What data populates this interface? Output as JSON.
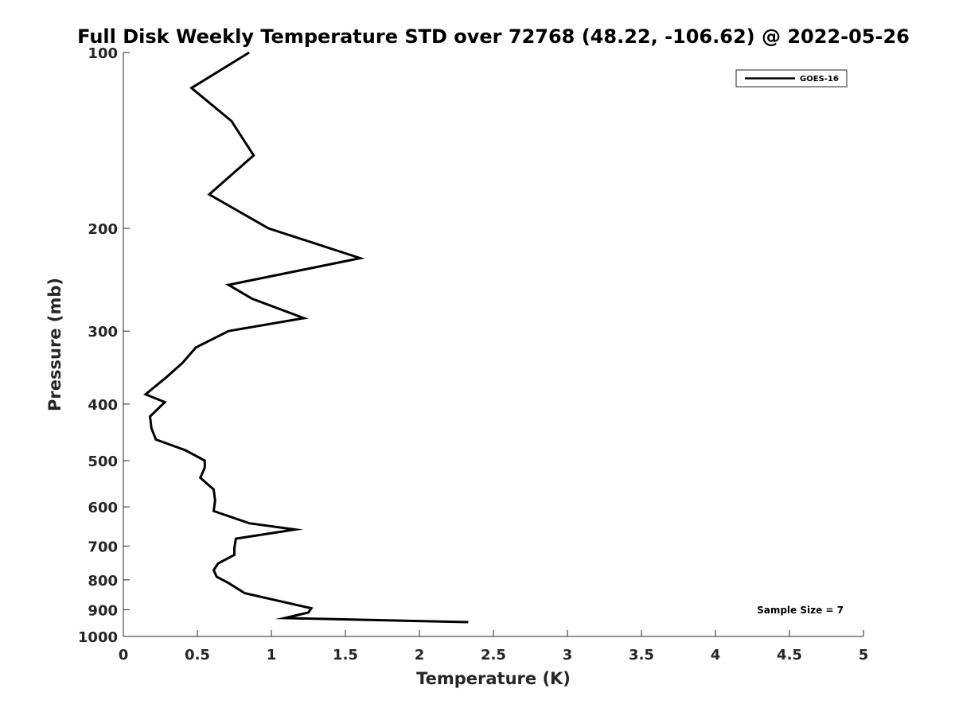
{
  "chart_data": {
    "type": "line",
    "title": "Full Disk Weekly Temperature STD over 72768 (48.22, -106.62) @ 2022-05-26",
    "xlabel": "Temperature (K)",
    "ylabel": "Pressure (mb)",
    "xlim": [
      0,
      5
    ],
    "ylim": [
      1000,
      100
    ],
    "y_scale": "log",
    "y_reversed": true,
    "grid": false,
    "legend_position": "top-right",
    "x_ticks": [
      "0",
      "0.5",
      "1",
      "1.5",
      "2",
      "2.5",
      "3",
      "3.5",
      "4",
      "4.5",
      "5"
    ],
    "y_ticks": [
      "100",
      "200",
      "300",
      "400",
      "500",
      "600",
      "700",
      "800",
      "900",
      "1000"
    ],
    "annotation": "Sample Size = 7",
    "series": [
      {
        "name": "GOES-16",
        "color": "#000000",
        "x": [
          0.85,
          0.46,
          0.73,
          0.88,
          0.58,
          0.98,
          1.6,
          0.71,
          0.87,
          1.22,
          0.71,
          0.49,
          0.4,
          0.29,
          0.15,
          0.28,
          0.18,
          0.19,
          0.22,
          0.42,
          0.55,
          0.55,
          0.52,
          0.61,
          0.62,
          0.61,
          0.85,
          1.16,
          0.76,
          0.75,
          0.75,
          0.64,
          0.61,
          0.63,
          0.71,
          0.82,
          1.27,
          1.25,
          1.09,
          2.33
        ],
        "y": [
          100,
          115,
          131,
          150,
          175,
          200,
          225,
          250,
          264,
          285,
          300,
          320,
          340,
          360,
          385,
          397,
          420,
          440,
          460,
          480,
          500,
          514,
          535,
          560,
          585,
          610,
          640,
          656,
          680,
          705,
          725,
          750,
          770,
          790,
          810,
          843,
          895,
          910,
          930,
          945
        ]
      }
    ]
  }
}
